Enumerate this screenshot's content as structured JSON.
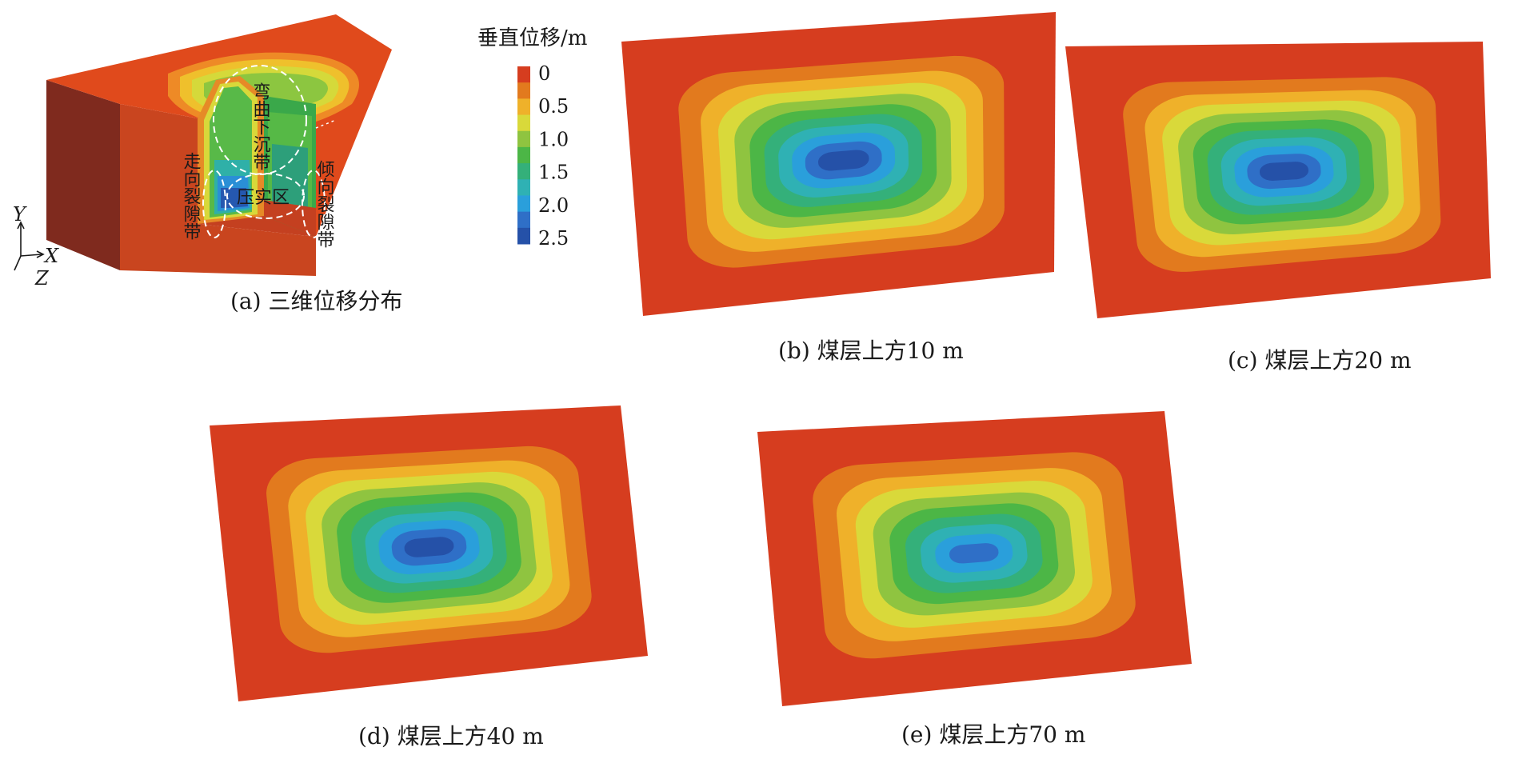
{
  "colorbar": {
    "title": "垂直位移/m",
    "ticks": [
      "0",
      "0.5",
      "1.0",
      "1.5",
      "2.0",
      "2.5"
    ],
    "colors": [
      "#d63d1f",
      "#e27a1e",
      "#efb12a",
      "#d9d93a",
      "#8fc440",
      "#4cb646",
      "#34b07a",
      "#2fb1b4",
      "#2a9fdb",
      "#2f6fc7",
      "#2551a8"
    ]
  },
  "panel_a": {
    "caption": "(a)  三维位移分布",
    "zone_bend": "弯曲下沉带",
    "zone_strike": "走向裂隙带",
    "zone_compact": "压实区",
    "zone_dip": "倾向裂隙带",
    "axis_y": "Y",
    "axis_x": "X",
    "axis_z": "Z"
  },
  "panels": [
    {
      "id": "b",
      "caption": "(b)  煤层上方10 m",
      "max_displacement_m": 2.5
    },
    {
      "id": "c",
      "caption": "(c)  煤层上方20 m",
      "max_displacement_m": 2.5
    },
    {
      "id": "d",
      "caption": "(d)  煤层上方40 m",
      "max_displacement_m": 2.4
    },
    {
      "id": "e",
      "caption": "(e)  煤层上方70 m",
      "max_displacement_m": 2.3
    }
  ]
}
